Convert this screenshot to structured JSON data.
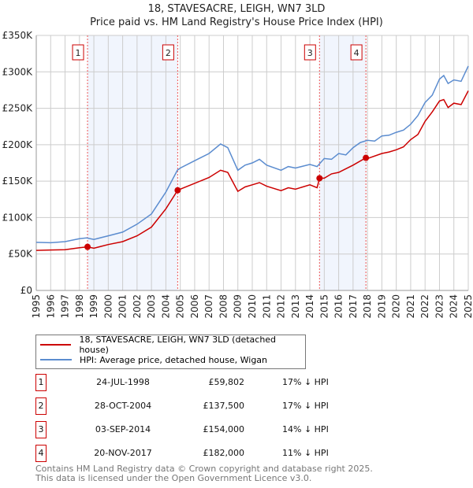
{
  "chart_data": {
    "type": "line",
    "title": "18, STAVESACRE, LEIGH, WN7 3LD",
    "subtitle": "Price paid vs. HM Land Registry's House Price Index (HPI)",
    "xlim": [
      1995,
      2025
    ],
    "ylim": [
      0,
      350000
    ],
    "grid": true,
    "y_ticks": [
      {
        "v": 0,
        "label": "£0"
      },
      {
        "v": 50000,
        "label": "£50K"
      },
      {
        "v": 100000,
        "label": "£100K"
      },
      {
        "v": 150000,
        "label": "£150K"
      },
      {
        "v": 200000,
        "label": "£200K"
      },
      {
        "v": 250000,
        "label": "£250K"
      },
      {
        "v": 300000,
        "label": "£300K"
      },
      {
        "v": 350000,
        "label": "£350K"
      }
    ],
    "x_ticks": [
      "1995",
      "1996",
      "1997",
      "1998",
      "1999",
      "2000",
      "2001",
      "2002",
      "2003",
      "2004",
      "2005",
      "2006",
      "2007",
      "2008",
      "2009",
      "2010",
      "2011",
      "2012",
      "2013",
      "2014",
      "2015",
      "2016",
      "2017",
      "2018",
      "2019",
      "2020",
      "2021",
      "2022",
      "2023",
      "2024",
      "2025"
    ],
    "series": [
      {
        "name": "18, STAVESACRE, LEIGH, WN7 3LD (detached house)",
        "color": "#cc0000",
        "x": [
          1995,
          1996,
          1997,
          1998,
          1998.56,
          1999,
          2000,
          2001,
          2002,
          2003,
          2004,
          2004.82,
          2005,
          2006,
          2007,
          2007.8,
          2008.3,
          2009,
          2009.5,
          2010,
          2010.5,
          2011,
          2012,
          2012.5,
          2013,
          2014,
          2014.5,
          2014.67,
          2015,
          2015.5,
          2016,
          2016.5,
          2017,
          2017.89,
          2018,
          2019,
          2019.5,
          2020,
          2020.5,
          2021,
          2021.5,
          2022,
          2022.5,
          2023,
          2023.3,
          2023.6,
          2024,
          2024.5,
          2025
        ],
        "y": [
          55000,
          55500,
          56000,
          58500,
          59802,
          58000,
          63000,
          67000,
          75000,
          87000,
          112000,
          137500,
          139000,
          147000,
          155000,
          165000,
          162000,
          136000,
          142000,
          145000,
          148000,
          143000,
          137000,
          141000,
          139000,
          145000,
          141000,
          154000,
          154000,
          160000,
          162000,
          167000,
          172000,
          182000,
          181000,
          188000,
          190000,
          193000,
          197000,
          207000,
          214000,
          232000,
          245000,
          260000,
          262000,
          251000,
          257000,
          255000,
          274000
        ]
      },
      {
        "name": "HPI: Average price, detached house, Wigan",
        "color": "#5b8ccf",
        "x": [
          1995,
          1996,
          1997,
          1998,
          1998.5,
          1999,
          2000,
          2001,
          2002,
          2003,
          2004,
          2004.8,
          2005,
          2006,
          2007,
          2007.8,
          2008.3,
          2009,
          2009.5,
          2010,
          2010.5,
          2011,
          2012,
          2012.5,
          2013,
          2014,
          2014.5,
          2015,
          2015.5,
          2016,
          2016.5,
          2017,
          2017.5,
          2018,
          2018.5,
          2019,
          2019.5,
          2020,
          2020.5,
          2021,
          2021.5,
          2022,
          2022.5,
          2023,
          2023.3,
          2023.6,
          2024,
          2024.5,
          2025
        ],
        "y": [
          66000,
          65500,
          67000,
          71000,
          72000,
          70000,
          75000,
          80000,
          91000,
          105000,
          135000,
          165000,
          168000,
          178000,
          188000,
          201000,
          196000,
          165000,
          172000,
          175000,
          180000,
          172000,
          165000,
          170000,
          168000,
          173000,
          170000,
          181000,
          180000,
          188000,
          186000,
          196000,
          203000,
          206000,
          205000,
          212000,
          213000,
          217000,
          220000,
          228000,
          240000,
          258000,
          268000,
          290000,
          295000,
          284000,
          289000,
          287000,
          308000
        ]
      }
    ],
    "sales": [
      {
        "n": "1",
        "x": 1998.56,
        "y": 59802
      },
      {
        "n": "2",
        "x": 2004.82,
        "y": 137500
      },
      {
        "n": "3",
        "x": 2014.67,
        "y": 154000
      },
      {
        "n": "4",
        "x": 2017.89,
        "y": 182000
      }
    ],
    "shaded_ranges": [
      [
        1998.56,
        2004.82
      ],
      [
        2014.67,
        2017.89
      ]
    ],
    "legend_placement": "below"
  },
  "table": [
    {
      "n": "1",
      "date": "24-JUL-1998",
      "price": "£59,802",
      "diff": "17% ↓ HPI"
    },
    {
      "n": "2",
      "date": "28-OCT-2004",
      "price": "£137,500",
      "diff": "17% ↓ HPI"
    },
    {
      "n": "3",
      "date": "03-SEP-2014",
      "price": "£154,000",
      "diff": "14% ↓ HPI"
    },
    {
      "n": "4",
      "date": "20-NOV-2017",
      "price": "£182,000",
      "diff": "11% ↓ HPI"
    }
  ],
  "footer": {
    "line1": "Contains HM Land Registry data © Crown copyright and database right 2025.",
    "line2": "This data is licensed under the Open Government Licence v3.0."
  }
}
